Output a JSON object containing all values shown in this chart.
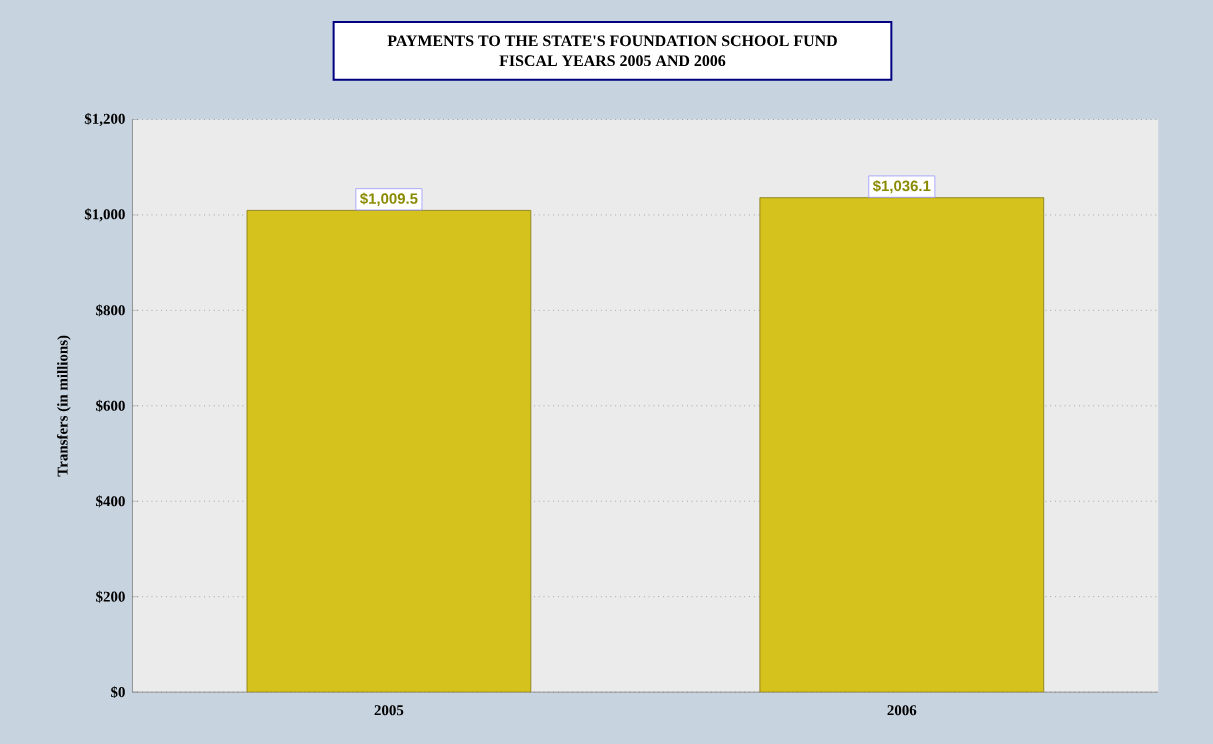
{
  "chart_data": {
    "type": "bar",
    "title": "PAYMENTS TO THE STATE'S FOUNDATION SCHOOL FUND",
    "subtitle": "FISCAL YEARS 2005 AND 2006",
    "ylabel": "Transfers (in millions)",
    "categories": [
      "2005",
      "2006"
    ],
    "values": [
      1009.5,
      1036.1
    ],
    "value_labels": [
      "$1,009.5",
      "$1,036.1"
    ],
    "color": "#d6c21c",
    "ylim": [
      0,
      1200
    ],
    "yticks": [
      {
        "value": 0,
        "label": "$0"
      },
      {
        "value": 200,
        "label": "$200"
      },
      {
        "value": 400,
        "label": "$400"
      },
      {
        "value": 600,
        "label": "$600"
      },
      {
        "value": 800,
        "label": "$800"
      },
      {
        "value": 1000,
        "label": "$1,000"
      },
      {
        "value": 1200,
        "label": "$1,200"
      }
    ],
    "grid": "y"
  }
}
